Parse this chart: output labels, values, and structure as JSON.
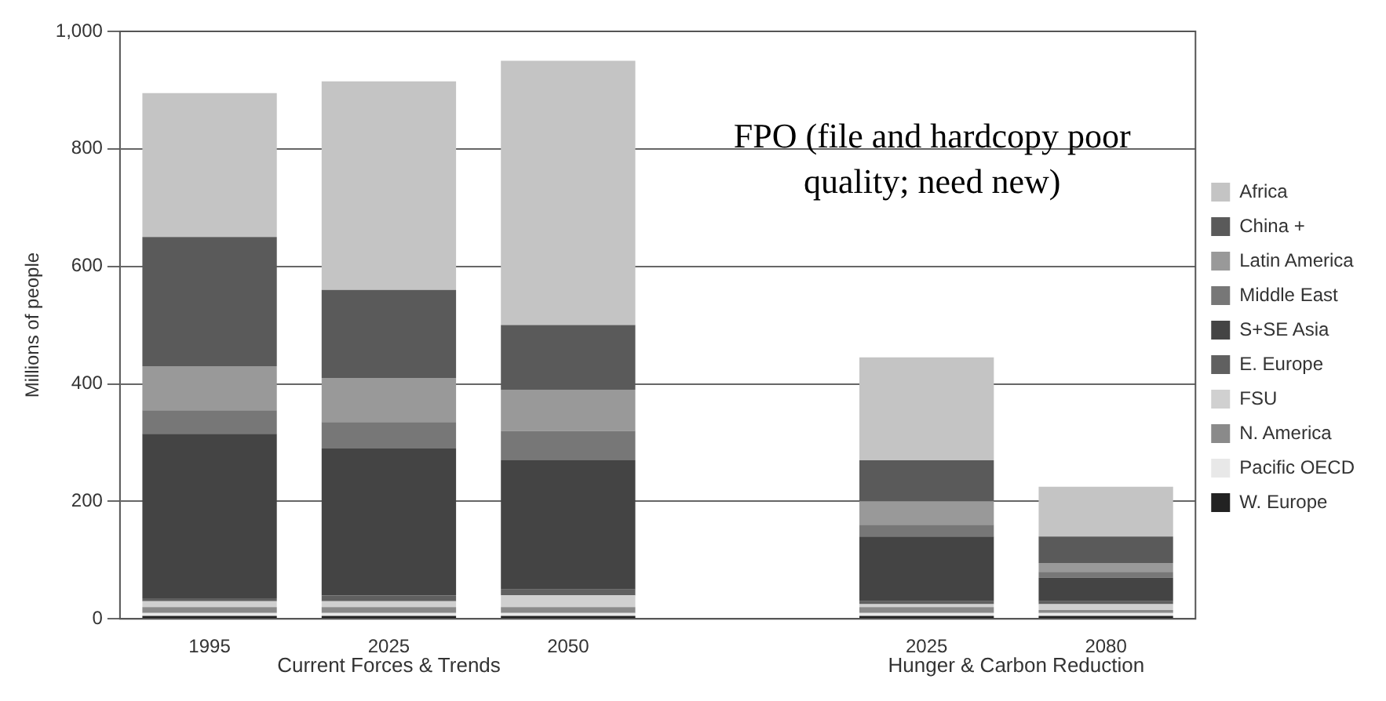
{
  "chart_data": {
    "type": "bar",
    "stacked": true,
    "ylabel": "Millions of people",
    "categories": [
      "1995",
      "2025",
      "2050",
      null,
      "2025",
      "2080"
    ],
    "series": [
      {
        "name": "W. Europe",
        "color": "#222222",
        "values": [
          5,
          5,
          5,
          null,
          5,
          5
        ]
      },
      {
        "name": "Pacific OECD",
        "color": "#e8e8e8",
        "values": [
          5,
          5,
          5,
          null,
          5,
          5
        ]
      },
      {
        "name": "N. America",
        "color": "#8a8a8a",
        "values": [
          10,
          10,
          10,
          null,
          10,
          5
        ]
      },
      {
        "name": "FSU",
        "color": "#d0d0d0",
        "values": [
          10,
          10,
          20,
          null,
          5,
          10
        ]
      },
      {
        "name": "E. Europe",
        "color": "#606060",
        "values": [
          5,
          10,
          10,
          null,
          5,
          5
        ]
      },
      {
        "name": "S+SE Asia",
        "color": "#444444",
        "values": [
          280,
          250,
          220,
          null,
          110,
          40
        ]
      },
      {
        "name": "Middle East",
        "color": "#777777",
        "values": [
          40,
          45,
          50,
          null,
          20,
          10
        ]
      },
      {
        "name": "Latin America",
        "color": "#999999",
        "values": [
          75,
          75,
          70,
          null,
          40,
          15
        ]
      },
      {
        "name": "China +",
        "color": "#5a5a5a",
        "values": [
          220,
          150,
          110,
          null,
          70,
          45
        ]
      },
      {
        "name": "Africa",
        "color": "#c4c4c4",
        "values": [
          245,
          355,
          450,
          null,
          175,
          85
        ]
      }
    ],
    "ylim": [
      0,
      1000
    ],
    "yticks": [
      0,
      200,
      400,
      600,
      800,
      {
        "value": 1000,
        "label": "1,000"
      }
    ],
    "grid": "y",
    "legend": "right",
    "annotations": [
      "Current Forces & Trends",
      "Hunger & Carbon Reduction",
      "FPO (file and hardcopy poor quality; need new)"
    ]
  }
}
